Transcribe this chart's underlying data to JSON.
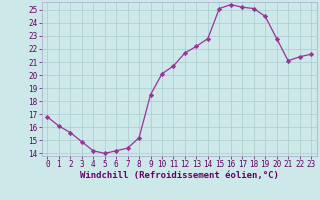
{
  "x": [
    0,
    1,
    2,
    3,
    4,
    5,
    6,
    7,
    8,
    9,
    10,
    11,
    12,
    13,
    14,
    15,
    16,
    17,
    18,
    19,
    20,
    21,
    22,
    23
  ],
  "y": [
    16.8,
    16.1,
    15.6,
    14.9,
    14.2,
    14.0,
    14.2,
    14.4,
    15.2,
    18.5,
    20.1,
    20.7,
    21.7,
    22.2,
    22.8,
    25.1,
    25.4,
    25.2,
    25.1,
    24.5,
    22.8,
    21.1,
    21.4,
    21.6
  ],
  "xlim": [
    -0.5,
    23.5
  ],
  "ylim": [
    13.8,
    25.6
  ],
  "yticks": [
    14,
    15,
    16,
    17,
    18,
    19,
    20,
    21,
    22,
    23,
    24,
    25
  ],
  "xticks": [
    0,
    1,
    2,
    3,
    4,
    5,
    6,
    7,
    8,
    9,
    10,
    11,
    12,
    13,
    14,
    15,
    16,
    17,
    18,
    19,
    20,
    21,
    22,
    23
  ],
  "xlabel": "Windchill (Refroidissement éolien,°C)",
  "line_color": "#993399",
  "marker": "D",
  "marker_size": 2.2,
  "bg_color": "#cce8e8",
  "grid_color": "#aacccc",
  "tick_color": "#660066",
  "tick_fontsize": 5.5,
  "label_fontsize": 6.5
}
